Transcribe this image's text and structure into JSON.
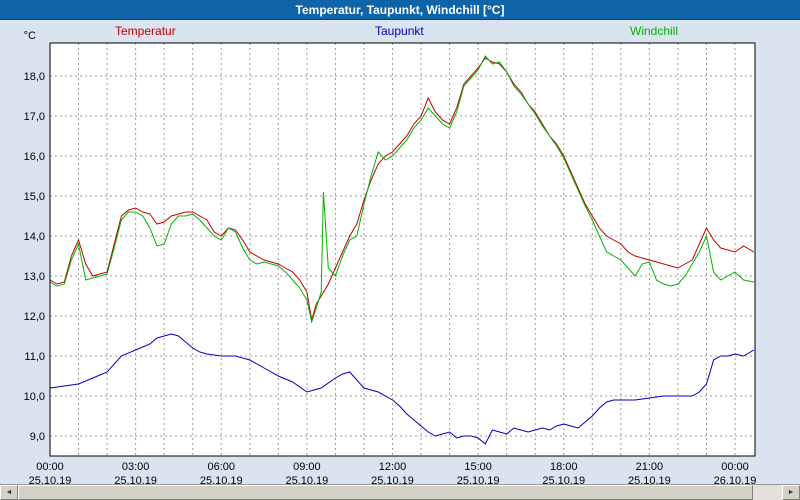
{
  "window": {
    "title": "Temperatur, Taupunkt, Windchill [°C]"
  },
  "scrollbar": {
    "left_arrow": "◄",
    "right_arrow": "►"
  },
  "chart_data": {
    "type": "line",
    "title": "Temperatur, Taupunkt, Windchill [°C]",
    "y_unit": "°C",
    "y_min": 8.5,
    "y_max": 18.825,
    "x_min": 0,
    "x_max": 24.7,
    "grid_hour_step": 1,
    "grid_on": true,
    "y_tick_values": [
      9,
      10,
      11,
      12,
      13,
      14,
      15,
      16,
      17,
      18
    ],
    "y_tick_labels": [
      "9,0",
      "10,0",
      "11,0",
      "12,0",
      "13,0",
      "14,0",
      "15,0",
      "16,0",
      "17,0",
      "18,0"
    ],
    "x_ticks": [
      {
        "hour": 0,
        "time": "00:00",
        "date": "25.10.19"
      },
      {
        "hour": 3,
        "time": "03:00",
        "date": "25.10.19"
      },
      {
        "hour": 6,
        "time": "06:00",
        "date": "25.10.19"
      },
      {
        "hour": 9,
        "time": "09:00",
        "date": "25.10.19"
      },
      {
        "hour": 12,
        "time": "12:00",
        "date": "25.10.19"
      },
      {
        "hour": 15,
        "time": "15:00",
        "date": "25.10.19"
      },
      {
        "hour": 18,
        "time": "18:00",
        "date": "25.10.19"
      },
      {
        "hour": 21,
        "time": "21:00",
        "date": "25.10.19"
      },
      {
        "hour": 24,
        "time": "00:00",
        "date": "26.10.19"
      }
    ],
    "series": [
      {
        "name": "Temperatur",
        "color": "#c00000",
        "points": [
          [
            0,
            12.9
          ],
          [
            0.25,
            12.8
          ],
          [
            0.5,
            12.85
          ],
          [
            0.75,
            13.5
          ],
          [
            1,
            13.9
          ],
          [
            1.25,
            13.3
          ],
          [
            1.5,
            13.0
          ],
          [
            1.75,
            13.05
          ],
          [
            2,
            13.1
          ],
          [
            2.25,
            13.8
          ],
          [
            2.5,
            14.5
          ],
          [
            2.75,
            14.65
          ],
          [
            3,
            14.7
          ],
          [
            3.25,
            14.6
          ],
          [
            3.5,
            14.55
          ],
          [
            3.75,
            14.3
          ],
          [
            4,
            14.35
          ],
          [
            4.25,
            14.5
          ],
          [
            4.5,
            14.55
          ],
          [
            4.75,
            14.6
          ],
          [
            5,
            14.6
          ],
          [
            5.25,
            14.5
          ],
          [
            5.5,
            14.4
          ],
          [
            5.75,
            14.1
          ],
          [
            6,
            14.0
          ],
          [
            6.25,
            14.2
          ],
          [
            6.5,
            14.15
          ],
          [
            6.75,
            13.9
          ],
          [
            7,
            13.6
          ],
          [
            7.25,
            13.5
          ],
          [
            7.5,
            13.4
          ],
          [
            7.75,
            13.35
          ],
          [
            8,
            13.3
          ],
          [
            8.25,
            13.2
          ],
          [
            8.5,
            13.1
          ],
          [
            8.75,
            12.9
          ],
          [
            9,
            12.6
          ],
          [
            9.17,
            11.9
          ],
          [
            9.33,
            12.3
          ],
          [
            9.5,
            12.5
          ],
          [
            9.75,
            12.8
          ],
          [
            10,
            13.2
          ],
          [
            10.25,
            13.6
          ],
          [
            10.5,
            14.0
          ],
          [
            10.75,
            14.3
          ],
          [
            11,
            14.9
          ],
          [
            11.25,
            15.4
          ],
          [
            11.5,
            15.8
          ],
          [
            11.75,
            16.0
          ],
          [
            12,
            16.1
          ],
          [
            12.25,
            16.3
          ],
          [
            12.5,
            16.5
          ],
          [
            12.75,
            16.8
          ],
          [
            13,
            17.0
          ],
          [
            13.25,
            17.45
          ],
          [
            13.5,
            17.1
          ],
          [
            13.75,
            16.9
          ],
          [
            14,
            16.8
          ],
          [
            14.25,
            17.2
          ],
          [
            14.5,
            17.8
          ],
          [
            14.75,
            18.0
          ],
          [
            15,
            18.2
          ],
          [
            15.25,
            18.45
          ],
          [
            15.5,
            18.35
          ],
          [
            15.75,
            18.3
          ],
          [
            16,
            18.1
          ],
          [
            16.25,
            17.8
          ],
          [
            16.5,
            17.6
          ],
          [
            16.75,
            17.3
          ],
          [
            17,
            17.1
          ],
          [
            17.25,
            16.8
          ],
          [
            17.5,
            16.5
          ],
          [
            17.75,
            16.3
          ],
          [
            18,
            16.0
          ],
          [
            18.25,
            15.6
          ],
          [
            18.5,
            15.2
          ],
          [
            18.75,
            14.8
          ],
          [
            19,
            14.5
          ],
          [
            19.25,
            14.2
          ],
          [
            19.5,
            14.0
          ],
          [
            19.75,
            13.9
          ],
          [
            20,
            13.8
          ],
          [
            20.25,
            13.6
          ],
          [
            20.5,
            13.5
          ],
          [
            20.75,
            13.45
          ],
          [
            21,
            13.4
          ],
          [
            21.25,
            13.35
          ],
          [
            21.5,
            13.3
          ],
          [
            21.75,
            13.25
          ],
          [
            22,
            13.2
          ],
          [
            22.25,
            13.3
          ],
          [
            22.5,
            13.4
          ],
          [
            22.75,
            13.8
          ],
          [
            23,
            14.2
          ],
          [
            23.25,
            13.9
          ],
          [
            23.5,
            13.7
          ],
          [
            23.75,
            13.65
          ],
          [
            24,
            13.6
          ],
          [
            24.3,
            13.75
          ],
          [
            24.66,
            13.6
          ]
        ]
      },
      {
        "name": "Taupunkt",
        "color": "#0000c0",
        "points": [
          [
            0,
            10.2
          ],
          [
            0.5,
            10.25
          ],
          [
            1,
            10.3
          ],
          [
            1.5,
            10.45
          ],
          [
            2,
            10.6
          ],
          [
            2.5,
            11.0
          ],
          [
            3,
            11.15
          ],
          [
            3.5,
            11.3
          ],
          [
            3.75,
            11.45
          ],
          [
            4,
            11.5
          ],
          [
            4.25,
            11.55
          ],
          [
            4.5,
            11.5
          ],
          [
            4.75,
            11.35
          ],
          [
            5,
            11.2
          ],
          [
            5.25,
            11.1
          ],
          [
            5.5,
            11.05
          ],
          [
            6,
            11.0
          ],
          [
            6.5,
            11.0
          ],
          [
            7,
            10.9
          ],
          [
            7.5,
            10.7
          ],
          [
            8,
            10.5
          ],
          [
            8.5,
            10.35
          ],
          [
            9,
            10.1
          ],
          [
            9.5,
            10.2
          ],
          [
            10,
            10.45
          ],
          [
            10.25,
            10.55
          ],
          [
            10.5,
            10.6
          ],
          [
            10.75,
            10.4
          ],
          [
            11,
            10.2
          ],
          [
            11.5,
            10.1
          ],
          [
            12,
            9.9
          ],
          [
            12.25,
            9.75
          ],
          [
            12.5,
            9.55
          ],
          [
            12.75,
            9.4
          ],
          [
            13,
            9.25
          ],
          [
            13.25,
            9.1
          ],
          [
            13.5,
            9.0
          ],
          [
            13.75,
            9.05
          ],
          [
            14,
            9.1
          ],
          [
            14.25,
            8.95
          ],
          [
            14.5,
            9.0
          ],
          [
            14.75,
            9.0
          ],
          [
            15,
            8.95
          ],
          [
            15.25,
            8.8
          ],
          [
            15.5,
            9.15
          ],
          [
            15.75,
            9.1
          ],
          [
            16,
            9.05
          ],
          [
            16.25,
            9.2
          ],
          [
            16.5,
            9.15
          ],
          [
            16.75,
            9.1
          ],
          [
            17,
            9.15
          ],
          [
            17.25,
            9.2
          ],
          [
            17.5,
            9.15
          ],
          [
            17.75,
            9.25
          ],
          [
            18,
            9.3
          ],
          [
            18.25,
            9.25
          ],
          [
            18.5,
            9.2
          ],
          [
            18.75,
            9.35
          ],
          [
            19,
            9.5
          ],
          [
            19.25,
            9.7
          ],
          [
            19.5,
            9.85
          ],
          [
            19.75,
            9.9
          ],
          [
            20,
            9.9
          ],
          [
            20.5,
            9.9
          ],
          [
            21,
            9.95
          ],
          [
            21.5,
            10.0
          ],
          [
            22,
            10.0
          ],
          [
            22.5,
            10.0
          ],
          [
            22.75,
            10.1
          ],
          [
            23,
            10.3
          ],
          [
            23.25,
            10.9
          ],
          [
            23.5,
            11.0
          ],
          [
            23.75,
            11.0
          ],
          [
            24,
            11.05
          ],
          [
            24.3,
            11.0
          ],
          [
            24.66,
            11.15
          ]
        ]
      },
      {
        "name": "Windchill",
        "color": "#00b400",
        "points": [
          [
            0,
            12.85
          ],
          [
            0.25,
            12.75
          ],
          [
            0.5,
            12.8
          ],
          [
            0.75,
            13.4
          ],
          [
            1,
            13.8
          ],
          [
            1.25,
            12.9
          ],
          [
            1.5,
            12.95
          ],
          [
            1.75,
            13.0
          ],
          [
            2,
            13.05
          ],
          [
            2.25,
            13.7
          ],
          [
            2.5,
            14.4
          ],
          [
            2.75,
            14.6
          ],
          [
            3,
            14.6
          ],
          [
            3.25,
            14.5
          ],
          [
            3.5,
            14.2
          ],
          [
            3.75,
            13.75
          ],
          [
            4,
            13.8
          ],
          [
            4.25,
            14.3
          ],
          [
            4.5,
            14.5
          ],
          [
            4.75,
            14.5
          ],
          [
            5,
            14.55
          ],
          [
            5.25,
            14.4
          ],
          [
            5.5,
            14.2
          ],
          [
            5.75,
            14.0
          ],
          [
            6,
            13.9
          ],
          [
            6.25,
            14.2
          ],
          [
            6.5,
            14.1
          ],
          [
            6.75,
            13.7
          ],
          [
            7,
            13.4
          ],
          [
            7.25,
            13.3
          ],
          [
            7.5,
            13.35
          ],
          [
            7.75,
            13.3
          ],
          [
            8,
            13.25
          ],
          [
            8.25,
            13.1
          ],
          [
            8.5,
            12.9
          ],
          [
            8.75,
            12.7
          ],
          [
            9,
            12.4
          ],
          [
            9.17,
            11.85
          ],
          [
            9.33,
            12.2
          ],
          [
            9.5,
            12.6
          ],
          [
            9.58,
            15.1
          ],
          [
            9.75,
            13.2
          ],
          [
            10,
            13.0
          ],
          [
            10.25,
            13.5
          ],
          [
            10.5,
            13.9
          ],
          [
            10.75,
            14.0
          ],
          [
            11,
            14.8
          ],
          [
            11.25,
            15.5
          ],
          [
            11.5,
            16.1
          ],
          [
            11.75,
            15.9
          ],
          [
            12,
            16.0
          ],
          [
            12.25,
            16.2
          ],
          [
            12.5,
            16.4
          ],
          [
            12.75,
            16.7
          ],
          [
            13,
            16.9
          ],
          [
            13.25,
            17.2
          ],
          [
            13.5,
            17.0
          ],
          [
            13.75,
            16.8
          ],
          [
            14,
            16.7
          ],
          [
            14.25,
            17.1
          ],
          [
            14.5,
            17.75
          ],
          [
            14.75,
            17.95
          ],
          [
            15,
            18.15
          ],
          [
            15.25,
            18.5
          ],
          [
            15.5,
            18.3
          ],
          [
            15.75,
            18.35
          ],
          [
            16,
            18.1
          ],
          [
            16.25,
            17.75
          ],
          [
            16.5,
            17.55
          ],
          [
            16.75,
            17.3
          ],
          [
            17,
            17.05
          ],
          [
            17.25,
            16.75
          ],
          [
            17.5,
            16.5
          ],
          [
            17.75,
            16.25
          ],
          [
            18,
            15.95
          ],
          [
            18.25,
            15.55
          ],
          [
            18.5,
            15.15
          ],
          [
            18.75,
            14.75
          ],
          [
            19,
            14.4
          ],
          [
            19.25,
            14.0
          ],
          [
            19.5,
            13.6
          ],
          [
            19.75,
            13.5
          ],
          [
            20,
            13.4
          ],
          [
            20.25,
            13.2
          ],
          [
            20.5,
            13.0
          ],
          [
            20.75,
            13.3
          ],
          [
            21,
            13.35
          ],
          [
            21.25,
            12.9
          ],
          [
            21.5,
            12.8
          ],
          [
            21.75,
            12.75
          ],
          [
            22,
            12.8
          ],
          [
            22.25,
            13.0
          ],
          [
            22.5,
            13.3
          ],
          [
            22.75,
            13.6
          ],
          [
            23,
            14.0
          ],
          [
            23.25,
            13.1
          ],
          [
            23.5,
            12.9
          ],
          [
            23.75,
            13.0
          ],
          [
            24,
            13.1
          ],
          [
            24.3,
            12.9
          ],
          [
            24.66,
            12.85
          ]
        ]
      }
    ]
  }
}
